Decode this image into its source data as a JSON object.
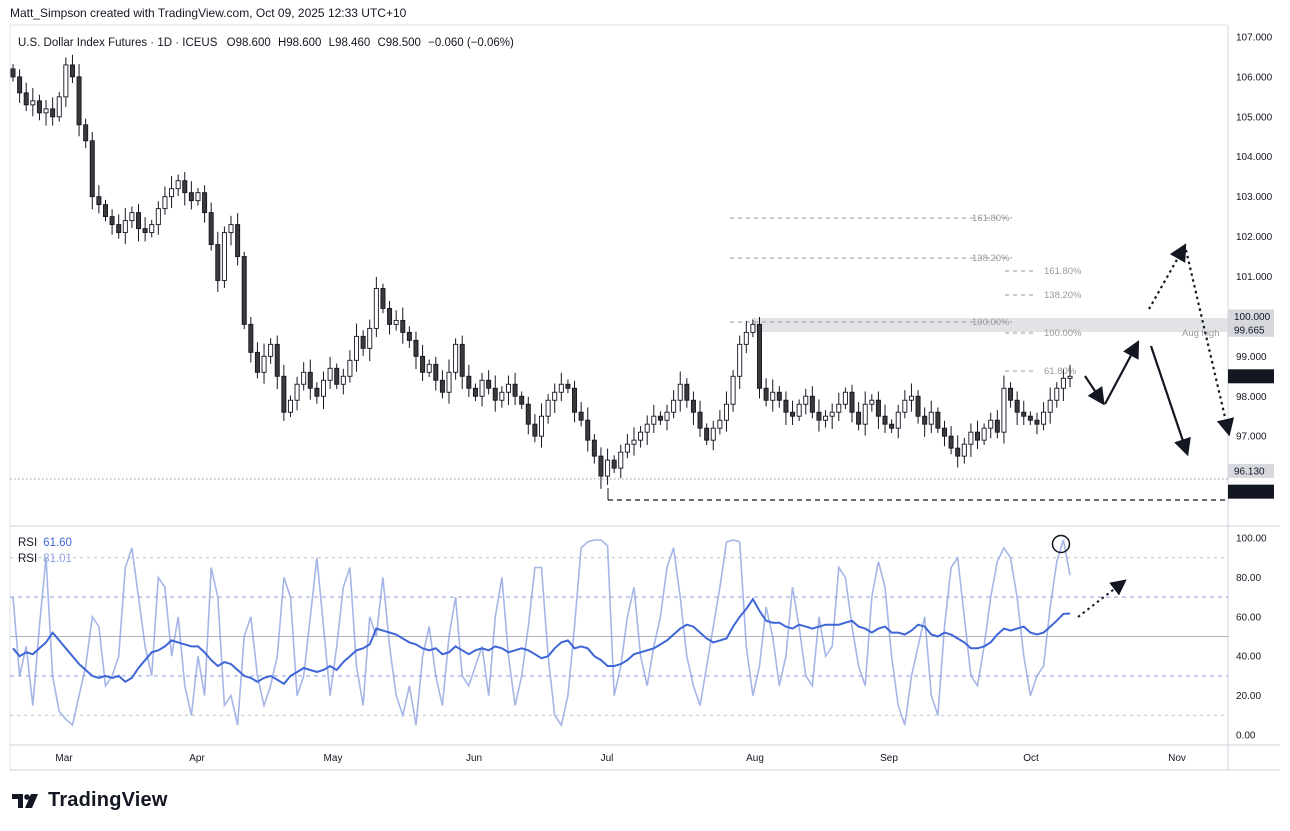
{
  "credit": "Matt_Simpson created with TradingView.com, Oct 09, 2025 12:33 UTC+10",
  "legend": {
    "symbol": "U.S. Dollar Index Futures · 1D · ICEUS",
    "o_label": "O",
    "o": "98.600",
    "h_label": "H",
    "h": "98.600",
    "l_label": "L",
    "l": "98.460",
    "c_label": "C",
    "c": "98.500",
    "chg": "−0.060 (−0.06%)"
  },
  "rsi_legend": [
    {
      "name": "RSI",
      "value": "61.60",
      "color": "#3f66d6"
    },
    {
      "name": "RSI",
      "value": "81.01",
      "color": "#8ea2e0"
    }
  ],
  "brand": "TradingView",
  "chart_data": [
    {
      "type": "candlestick",
      "title": "U.S. Dollar Index Futures · 1D · ICEUS",
      "x_ticks": [
        "Mar",
        "Apr",
        "May",
        "Jun",
        "Jul",
        "Aug",
        "Sep",
        "Oct",
        "Nov"
      ],
      "ylim": [
        94.9,
        107.3
      ],
      "y_ticks": [
        "107.000",
        "106.000",
        "105.000",
        "104.000",
        "103.000",
        "102.000",
        "101.000",
        "100.000",
        "99.000",
        "98.000",
        "97.000"
      ],
      "price_labels": [
        {
          "label": "100.000",
          "value": 100.0,
          "style": "gray"
        },
        {
          "label": "99.665",
          "value": 99.665,
          "style": "gray"
        },
        {
          "label": "98.500",
          "value": 98.5,
          "style": "dark"
        },
        {
          "label": "96.130",
          "value": 96.13,
          "style": "gray"
        },
        {
          "label": "95.610",
          "value": 95.61,
          "style": "dark"
        }
      ],
      "closes": [
        106.0,
        105.6,
        105.3,
        105.4,
        105.1,
        105.2,
        105.0,
        105.5,
        106.3,
        106.0,
        104.8,
        104.4,
        103.0,
        102.8,
        102.5,
        102.3,
        102.1,
        102.4,
        102.6,
        102.2,
        102.1,
        102.3,
        102.7,
        103.0,
        103.2,
        103.4,
        103.1,
        102.9,
        103.1,
        102.6,
        101.8,
        100.9,
        102.1,
        102.3,
        101.5,
        99.8,
        99.1,
        98.6,
        99.0,
        99.3,
        98.5,
        97.6,
        97.9,
        98.3,
        98.6,
        98.2,
        98.0,
        98.4,
        98.7,
        98.3,
        98.5,
        98.9,
        99.5,
        99.2,
        99.7,
        100.7,
        100.2,
        99.8,
        99.9,
        99.6,
        99.4,
        99.0,
        98.6,
        98.8,
        98.4,
        98.1,
        98.6,
        99.3,
        98.5,
        98.2,
        98.0,
        98.4,
        98.2,
        97.9,
        98.1,
        98.3,
        98.0,
        97.8,
        97.3,
        97.0,
        97.5,
        97.9,
        98.1,
        98.3,
        98.2,
        97.6,
        97.4,
        96.9,
        96.5,
        96.0,
        96.4,
        96.2,
        96.6,
        96.8,
        96.9,
        97.1,
        97.3,
        97.5,
        97.4,
        97.6,
        97.9,
        98.3,
        97.9,
        97.6,
        97.2,
        96.9,
        97.2,
        97.4,
        97.8,
        98.5,
        99.3,
        99.6,
        99.8,
        98.2,
        97.9,
        98.1,
        97.9,
        97.6,
        97.5,
        97.8,
        98.0,
        97.6,
        97.4,
        97.5,
        97.6,
        97.8,
        98.1,
        97.6,
        97.3,
        97.8,
        97.9,
        97.5,
        97.3,
        97.2,
        97.6,
        97.9,
        98.0,
        97.5,
        97.3,
        97.6,
        97.2,
        97.0,
        96.7,
        96.5,
        96.8,
        97.1,
        96.9,
        97.2,
        97.4,
        97.1,
        98.2,
        97.9,
        97.6,
        97.5,
        97.4,
        97.3,
        97.6,
        97.9,
        98.2,
        98.45,
        98.5
      ]
    },
    {
      "type": "line",
      "title": "RSI",
      "ylim": [
        0,
        100
      ],
      "y_ticks": [
        100,
        80,
        60,
        40,
        20,
        0
      ],
      "levels": [
        70,
        50,
        30
      ],
      "series": [
        {
          "name": "RSI",
          "value_label": "61.60",
          "color": "#3f66d6",
          "values": [
            44,
            40,
            42,
            41,
            44,
            47,
            52,
            48,
            44,
            40,
            36,
            33,
            30,
            29,
            30,
            29,
            30,
            27,
            29,
            34,
            38,
            42,
            43,
            45,
            48,
            47,
            46,
            45,
            45,
            42,
            38,
            35,
            37,
            36,
            33,
            30,
            29,
            27,
            29,
            30,
            28,
            26,
            30,
            32,
            34,
            33,
            32,
            33,
            35,
            33,
            37,
            40,
            43,
            44,
            46,
            54,
            53,
            52,
            51,
            49,
            47,
            46,
            44,
            43,
            44,
            41,
            42,
            45,
            43,
            41,
            43,
            44,
            43,
            45,
            44,
            42,
            43,
            44,
            43,
            41,
            39,
            40,
            44,
            47,
            48,
            44,
            45,
            44,
            40,
            38,
            35,
            35,
            36,
            38,
            41,
            42,
            43,
            44,
            46,
            48,
            51,
            54,
            56,
            55,
            52,
            49,
            47,
            48,
            49,
            55,
            60,
            64,
            69,
            63,
            58,
            57,
            57,
            55,
            54,
            56,
            55,
            54,
            55,
            56,
            56,
            56,
            57,
            58,
            55,
            54,
            52,
            54,
            55,
            52,
            52,
            51,
            53,
            56,
            55,
            51,
            50,
            52,
            51,
            49,
            47,
            44,
            44,
            45,
            47,
            51,
            54,
            53,
            54,
            55,
            52,
            51,
            52,
            55,
            58,
            61.5,
            61.6
          ]
        },
        {
          "name": "RSI",
          "value_label": "81.01",
          "color": "#8ea2e0",
          "values": [
            70,
            30,
            45,
            15,
            55,
            90,
            30,
            12,
            8,
            5,
            20,
            35,
            60,
            55,
            25,
            30,
            40,
            85,
            95,
            70,
            45,
            30,
            80,
            75,
            40,
            60,
            25,
            10,
            40,
            20,
            85,
            70,
            15,
            20,
            5,
            50,
            60,
            30,
            15,
            25,
            40,
            80,
            70,
            20,
            30,
            60,
            90,
            55,
            20,
            45,
            75,
            85,
            35,
            15,
            60,
            50,
            80,
            45,
            20,
            10,
            25,
            5,
            40,
            55,
            30,
            15,
            50,
            70,
            30,
            25,
            35,
            45,
            20,
            60,
            80,
            40,
            15,
            30,
            55,
            85,
            85,
            40,
            10,
            5,
            20,
            55,
            95,
            98,
            99,
            99,
            96,
            20,
            35,
            60,
            75,
            40,
            25,
            45,
            60,
            85,
            95,
            70,
            40,
            25,
            15,
            35,
            55,
            75,
            98,
            99,
            98,
            45,
            20,
            35,
            65,
            50,
            25,
            40,
            75,
            55,
            30,
            25,
            60,
            40,
            45,
            85,
            80,
            55,
            35,
            25,
            70,
            88,
            75,
            40,
            15,
            5,
            30,
            45,
            60,
            20,
            10,
            55,
            85,
            90,
            60,
            30,
            25,
            45,
            70,
            88,
            95,
            90,
            70,
            40,
            20,
            30,
            35,
            65,
            88,
            99,
            81
          ]
        }
      ]
    }
  ],
  "annotations": {
    "fib_a": [
      "161.80%",
      "138.20%",
      "100.00%",
      "61.80%"
    ],
    "fib_b": [
      "161.80%",
      "138.20%",
      "100.00%"
    ],
    "aug_high": "Aug high"
  }
}
